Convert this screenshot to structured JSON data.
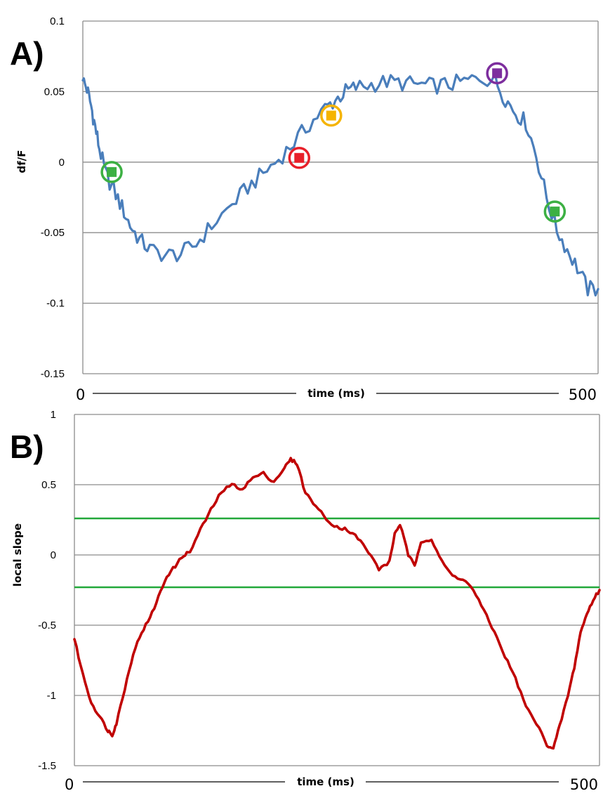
{
  "chart_data": [
    {
      "type": "line",
      "panel_label": "A)",
      "ylabel": "df/F",
      "xlabel": "time (ms)",
      "x_end_labels": [
        "0",
        "500"
      ],
      "xlim": [
        0,
        500
      ],
      "ylim": [
        -0.15,
        0.1
      ],
      "y_ticks": [
        "0.1",
        "0.05",
        "0",
        "-0.05",
        "-0.1",
        "-0.15"
      ],
      "grid": true,
      "series": [
        {
          "color": "#4a7ebb",
          "noise": 0.006,
          "x": [
            0,
            4,
            8,
            12,
            16,
            22,
            30,
            38,
            46,
            55,
            65,
            80,
            95,
            110,
            125,
            145,
            160,
            175,
            190,
            205,
            220,
            235,
            245,
            255,
            265,
            280,
            295,
            310,
            325,
            340,
            355,
            370,
            385,
            400,
            410,
            420,
            430,
            440,
            450,
            460,
            470,
            480,
            490,
            500
          ],
          "y": [
            0.058,
            0.052,
            0.04,
            0.025,
            0.01,
            -0.008,
            -0.02,
            -0.032,
            -0.045,
            -0.055,
            -0.062,
            -0.066,
            -0.065,
            -0.058,
            -0.045,
            -0.03,
            -0.018,
            -0.008,
            0.002,
            0.014,
            0.027,
            0.038,
            0.044,
            0.05,
            0.053,
            0.055,
            0.057,
            0.056,
            0.055,
            0.054,
            0.055,
            0.057,
            0.06,
            0.058,
            0.045,
            0.035,
            0.028,
            0.005,
            -0.025,
            -0.048,
            -0.062,
            -0.075,
            -0.09,
            -0.09
          ]
        }
      ],
      "markers": [
        {
          "x": 28,
          "y": -0.007,
          "color": "#3cb043"
        },
        {
          "x": 210,
          "y": 0.003,
          "color": "#e8202a"
        },
        {
          "x": 241,
          "y": 0.033,
          "color": "#f5b400"
        },
        {
          "x": 402,
          "y": 0.063,
          "color": "#7d2e9e"
        },
        {
          "x": 458,
          "y": -0.035,
          "color": "#3cb043"
        }
      ]
    },
    {
      "type": "line",
      "panel_label": "B)",
      "ylabel": "local slope",
      "xlabel": "time (ms)",
      "x_end_labels": [
        "0",
        "500"
      ],
      "xlim": [
        0,
        500
      ],
      "ylim": [
        -1.5,
        1
      ],
      "y_ticks": [
        "1",
        "0.5",
        "0",
        "-0.5",
        "-1",
        "-1.5"
      ],
      "grid": true,
      "series": [
        {
          "color": "#c00000",
          "noise": 0.012,
          "x": [
            0,
            8,
            16,
            24,
            32,
            36,
            40,
            48,
            56,
            64,
            72,
            80,
            88,
            96,
            104,
            110,
            120,
            130,
            140,
            150,
            160,
            170,
            180,
            190,
            200,
            206,
            212,
            220,
            230,
            240,
            250,
            260,
            270,
            280,
            290,
            300,
            305,
            310,
            318,
            324,
            330,
            340,
            350,
            360,
            370,
            380,
            390,
            400,
            410,
            420,
            430,
            440,
            450,
            456,
            462,
            470,
            476,
            482,
            488,
            494,
            500
          ],
          "y": [
            -0.6,
            -0.85,
            -1.05,
            -1.15,
            -1.25,
            -1.28,
            -1.2,
            -0.95,
            -0.7,
            -0.55,
            -0.45,
            -0.3,
            -0.15,
            -0.08,
            0.0,
            0.02,
            0.18,
            0.32,
            0.45,
            0.5,
            0.47,
            0.55,
            0.58,
            0.52,
            0.62,
            0.68,
            0.65,
            0.44,
            0.35,
            0.25,
            0.2,
            0.18,
            0.12,
            0.02,
            -0.1,
            -0.05,
            0.15,
            0.22,
            0.0,
            -0.08,
            0.1,
            0.11,
            -0.05,
            -0.15,
            -0.17,
            -0.25,
            -0.4,
            -0.55,
            -0.72,
            -0.88,
            -1.08,
            -1.2,
            -1.35,
            -1.38,
            -1.22,
            -1.0,
            -0.8,
            -0.55,
            -0.42,
            -0.32,
            -0.25
          ]
        }
      ],
      "thresholds": [
        {
          "y": 0.26,
          "color": "#22a83a"
        },
        {
          "y": -0.23,
          "color": "#22a83a"
        }
      ]
    }
  ]
}
